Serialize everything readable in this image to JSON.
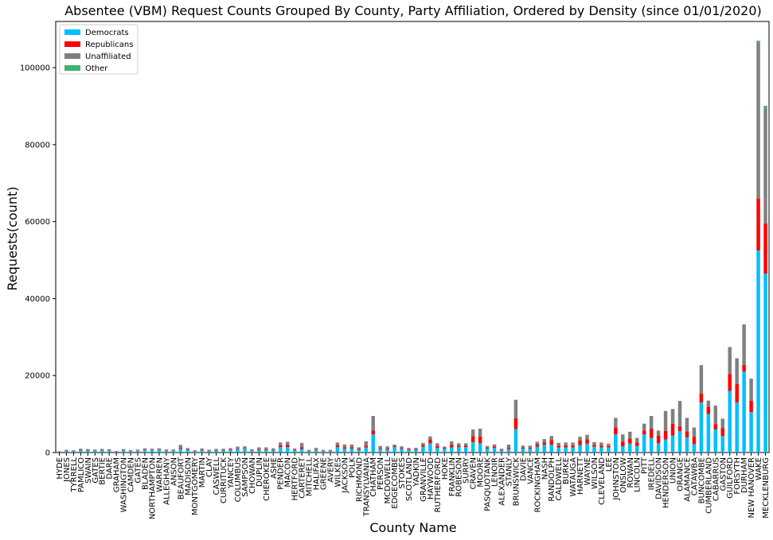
{
  "chart_data": {
    "type": "bar",
    "stacked": true,
    "title": "Absentee (VBM) Request Counts Grouped By County, Party Affiliation, Ordered by Density (since 01/01/2020)",
    "xlabel": "County Name",
    "ylabel": "Requests(count)",
    "ylim": [
      0,
      112000
    ],
    "yticks": [
      0,
      20000,
      40000,
      60000,
      80000,
      100000
    ],
    "legend_position": "top-left",
    "categories": [
      "HYDE",
      "JONES",
      "TYRRELL",
      "PAMLICO",
      "SWAIN",
      "GATES",
      "BERTIE",
      "DARE",
      "GRAHAM",
      "WASHINGTON",
      "CAMDEN",
      "GATES",
      "BLADEN",
      "NORTHAMPTON",
      "WARREN",
      "ALLEGHANY",
      "ANSON",
      "BEAUFORT",
      "MADISON",
      "MONTGOMERY",
      "MARTIN",
      "CLAY",
      "CASWELL",
      "CURRITUCK",
      "YANCEY",
      "COLUMBUS",
      "SAMPSON",
      "CHOWAN",
      "DUPLIN",
      "CHEROKEE",
      "ASHE",
      "PENDER",
      "MACON",
      "HERTFORD",
      "CARTERET",
      "MITCHELL",
      "HALIFAX",
      "GREENE",
      "AVERY",
      "WILKES",
      "JACKSON",
      "POLK",
      "RICHMOND",
      "TRANSYLVANIA",
      "CHATHAM",
      "PERSON",
      "MCDOWELL",
      "EDGECOMBE",
      "STOKES",
      "SCOTLAND",
      "YADKIN",
      "GRANVILLE",
      "HAYWOOD",
      "RUTHERFORD",
      "HOKE",
      "FRANKLIN",
      "ROBESON",
      "SURRY",
      "CRAVEN",
      "MOORE",
      "PASQUOTANK",
      "LENOIR",
      "ALEXANDER",
      "STANLY",
      "BRUNSWICK",
      "DAVIE",
      "VANCE",
      "ROCKINGHAM",
      "NASH",
      "RANDOLPH",
      "CALDWELL",
      "BURKE",
      "WATAUGA",
      "HARNETT",
      "WAYNE",
      "WILSON",
      "CLEVELAND",
      "LEE",
      "JOHNSTON",
      "ONSLOW",
      "ROWAN",
      "LINCOLN",
      "PITT",
      "IREDELL",
      "DAVIDSON",
      "HENDERSON",
      "UNION",
      "ORANGE",
      "ALAMANCE",
      "CATAWBA",
      "BUNCOMBE",
      "CUMBERLAND",
      "CABARRUS",
      "GASTON",
      "GUILFORD",
      "FORSYTH",
      "DURHAM",
      "NEW HANOVER",
      "WAKE",
      "MECKLENBURG"
    ],
    "series": [
      {
        "name": "Democrats",
        "color": "#00bfff",
        "values": [
          150,
          300,
          200,
          500,
          400,
          450,
          500,
          450,
          150,
          500,
          250,
          350,
          600,
          600,
          700,
          300,
          500,
          1000,
          600,
          250,
          600,
          300,
          500,
          500,
          600,
          900,
          1000,
          450,
          700,
          650,
          500,
          1400,
          1400,
          550,
          900,
          350,
          650,
          350,
          250,
          1400,
          1000,
          1000,
          700,
          1300,
          4700,
          900,
          800,
          1400,
          950,
          700,
          600,
          1500,
          2400,
          1200,
          1000,
          1300,
          1400,
          1400,
          2700,
          2400,
          1000,
          1200,
          500,
          900,
          6100,
          1000,
          1000,
          1500,
          2000,
          2000,
          1300,
          1300,
          1300,
          1900,
          2300,
          1500,
          1300,
          1300,
          4700,
          1600,
          2300,
          1700,
          4700,
          3800,
          2400,
          3400,
          4400,
          5600,
          3900,
          2200,
          13000,
          10000,
          6000,
          4300,
          16000,
          13000,
          21000,
          10500,
          52500,
          46500
        ]
      },
      {
        "name": "Republicans",
        "color": "#ff0000",
        "values": [
          50,
          100,
          80,
          100,
          100,
          80,
          100,
          100,
          50,
          100,
          80,
          100,
          100,
          100,
          100,
          80,
          100,
          300,
          150,
          100,
          150,
          80,
          150,
          150,
          150,
          150,
          200,
          100,
          200,
          200,
          150,
          500,
          600,
          150,
          500,
          100,
          150,
          100,
          100,
          500,
          400,
          400,
          250,
          500,
          1000,
          300,
          300,
          250,
          250,
          200,
          200,
          500,
          1000,
          500,
          250,
          700,
          400,
          400,
          1600,
          1800,
          300,
          400,
          150,
          400,
          2800,
          300,
          300,
          700,
          600,
          1200,
          500,
          600,
          500,
          1200,
          1100,
          500,
          500,
          400,
          1800,
          1200,
          1300,
          900,
          1000,
          2400,
          2000,
          2200,
          3100,
          1200,
          1600,
          1900,
          2300,
          1900,
          1400,
          2000,
          4400,
          4800,
          1800,
          3000,
          13500,
          13000
        ]
      },
      {
        "name": "Unaffiliated",
        "color": "#808080",
        "values": [
          150,
          300,
          300,
          400,
          400,
          250,
          350,
          300,
          200,
          300,
          300,
          300,
          400,
          300,
          300,
          400,
          200,
          700,
          400,
          250,
          300,
          350,
          300,
          350,
          400,
          500,
          400,
          300,
          450,
          500,
          450,
          700,
          800,
          350,
          1100,
          250,
          400,
          250,
          350,
          700,
          700,
          700,
          400,
          1100,
          3800,
          500,
          500,
          400,
          400,
          300,
          400,
          500,
          800,
          700,
          300,
          900,
          600,
          600,
          1700,
          2000,
          400,
          500,
          350,
          750,
          4800,
          500,
          500,
          600,
          900,
          1100,
          700,
          700,
          800,
          1000,
          1200,
          700,
          800,
          600,
          2500,
          1900,
          1800,
          1200,
          1800,
          3300,
          1300,
          5200,
          3800,
          6600,
          3500,
          2400,
          7400,
          1600,
          4800,
          2500,
          7000,
          6700,
          10500,
          5700,
          40500,
          30000
        ]
      },
      {
        "name": "Other",
        "color": "#3cb371",
        "values": [
          0,
          0,
          0,
          0,
          0,
          0,
          0,
          0,
          0,
          0,
          0,
          0,
          0,
          0,
          0,
          0,
          0,
          0,
          0,
          0,
          0,
          0,
          0,
          0,
          0,
          0,
          0,
          0,
          0,
          0,
          0,
          0,
          0,
          0,
          0,
          0,
          0,
          0,
          0,
          0,
          0,
          0,
          0,
          0,
          0,
          0,
          0,
          0,
          0,
          0,
          0,
          0,
          0,
          0,
          0,
          0,
          0,
          0,
          0,
          0,
          0,
          0,
          0,
          0,
          0,
          0,
          0,
          0,
          0,
          0,
          0,
          0,
          0,
          0,
          0,
          0,
          0,
          0,
          0,
          0,
          0,
          0,
          0,
          0,
          0,
          0,
          0,
          0,
          0,
          0,
          0,
          0,
          0,
          0,
          0,
          0,
          0,
          0,
          500,
          600
        ]
      }
    ]
  }
}
